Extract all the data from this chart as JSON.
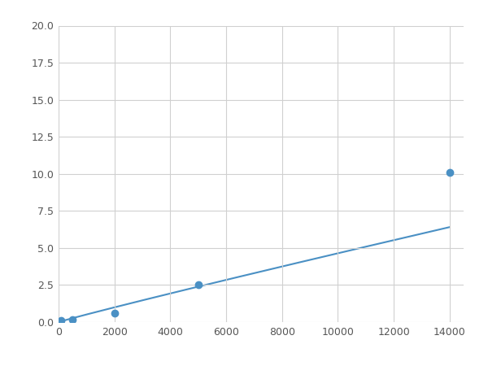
{
  "x_points": [
    100,
    500,
    2000,
    5000,
    14000
  ],
  "y_points": [
    0.1,
    0.15,
    0.6,
    2.5,
    10.1
  ],
  "line_color": "#4a90c4",
  "marker_color": "#4a90c4",
  "marker_size": 6,
  "xlim": [
    0,
    14500
  ],
  "ylim": [
    0,
    20
  ],
  "xticks": [
    0,
    2000,
    4000,
    6000,
    8000,
    10000,
    12000,
    14000
  ],
  "yticks": [
    0.0,
    2.5,
    5.0,
    7.5,
    10.0,
    12.5,
    15.0,
    17.5,
    20.0
  ],
  "grid_color": "#d0d0d0",
  "background_color": "#ffffff",
  "figsize": [
    6.0,
    4.5
  ],
  "dpi": 100
}
